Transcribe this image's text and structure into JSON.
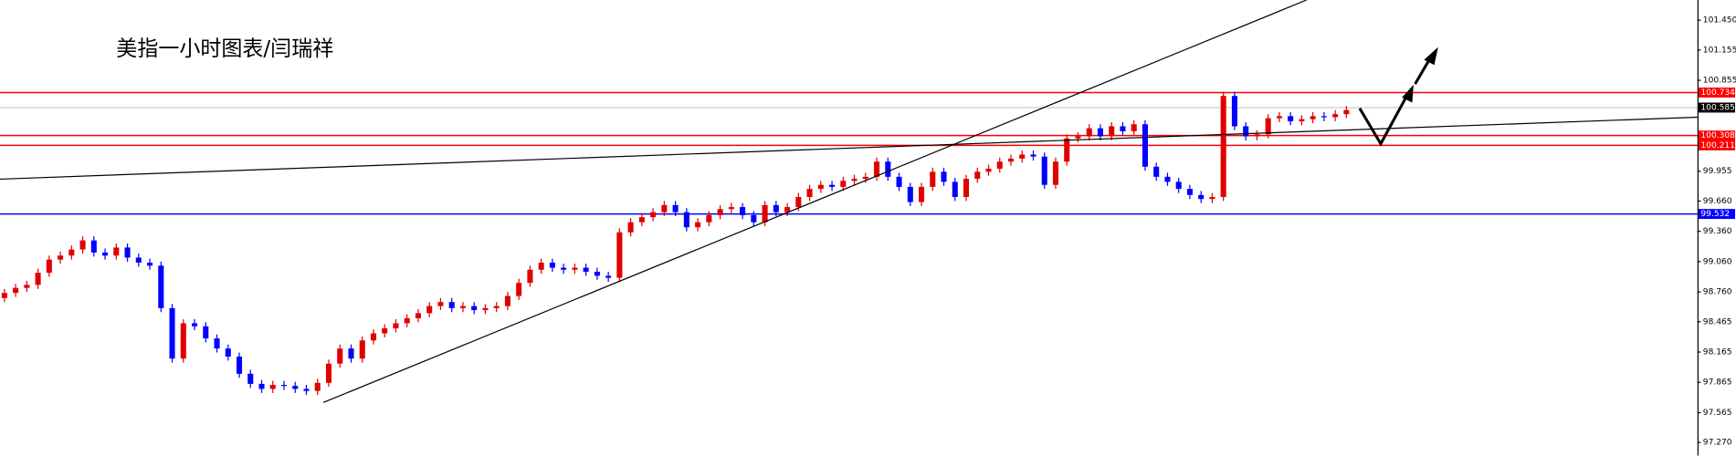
{
  "chart_data": {
    "type": "candlestick",
    "title": "美指一小时图表/闫瑞祥",
    "up_color": "#e00000",
    "down_color": "#0000ff",
    "ylim": [
      97.14,
      101.65
    ],
    "yticks": [
      {
        "value": 101.45,
        "label": "101.450"
      },
      101.155,
      100.855,
      99.955,
      {
        "value": 99.66,
        "label": "99.660"
      },
      {
        "value": 99.36,
        "label": "99.360"
      },
      {
        "value": 99.06,
        "label": "99.060"
      },
      {
        "value": 98.76,
        "label": "98.760"
      },
      98.465,
      98.165,
      97.865,
      97.565,
      {
        "value": 97.27,
        "label": "97.270"
      }
    ],
    "levels": [
      {
        "value": 100.734,
        "color": "#ff0000"
      },
      {
        "value": 100.585,
        "color": "#c0c0c0"
      },
      {
        "value": 100.308,
        "color": "#ff0000"
      },
      {
        "value": 100.211,
        "color": "#ff0000"
      },
      {
        "value": 99.532,
        "color": "#0000ff"
      }
    ],
    "open": [
      98.7,
      98.75,
      98.8,
      98.83,
      98.95,
      99.08,
      99.12,
      99.18,
      99.27,
      99.15,
      99.12,
      99.2,
      99.1,
      99.05,
      99.02,
      98.6,
      98.1,
      98.45,
      98.42,
      98.3,
      98.2,
      98.12,
      97.95,
      97.85,
      97.8,
      97.84,
      97.83,
      97.8,
      97.78,
      97.86,
      98.05,
      98.2,
      98.1,
      98.28,
      98.35,
      98.4,
      98.45,
      98.5,
      98.55,
      98.62,
      98.66,
      98.6,
      98.62,
      98.58,
      98.6,
      98.62,
      98.72,
      98.85,
      98.98,
      99.05,
      99.0,
      98.98,
      99.0,
      98.96,
      98.92,
      98.9,
      99.35,
      99.45,
      99.5,
      99.55,
      99.62,
      99.55,
      99.4,
      99.45,
      99.52,
      99.58,
      99.6,
      99.52,
      99.45,
      99.62,
      99.55,
      99.6,
      99.7,
      99.78,
      99.82,
      99.8,
      99.86,
      99.88,
      99.9,
      100.05,
      99.9,
      99.8,
      99.65,
      99.8,
      99.95,
      99.85,
      99.7,
      99.88,
      99.95,
      99.98,
      100.05,
      100.08,
      100.12,
      100.1,
      99.82,
      100.05,
      100.28,
      100.3,
      100.38,
      100.3,
      100.4,
      100.35,
      100.42,
      100.0,
      99.9,
      99.85,
      99.78,
      99.72,
      99.68,
      99.7,
      100.7,
      100.4,
      100.3,
      100.32,
      100.48,
      100.5,
      100.45,
      100.47,
      100.5,
      100.49,
      100.52
    ],
    "high": [
      98.79,
      98.84,
      98.87,
      98.99,
      99.12,
      99.16,
      99.22,
      99.31,
      99.31,
      99.19,
      99.24,
      99.24,
      99.14,
      99.09,
      99.06,
      98.64,
      98.49,
      98.49,
      98.46,
      98.34,
      98.24,
      98.16,
      97.99,
      97.89,
      97.88,
      97.88,
      97.87,
      97.84,
      97.9,
      98.09,
      98.24,
      98.24,
      98.32,
      98.39,
      98.44,
      98.49,
      98.54,
      98.59,
      98.66,
      98.7,
      98.7,
      98.66,
      98.66,
      98.64,
      98.66,
      98.76,
      98.89,
      99.02,
      99.09,
      99.09,
      99.04,
      99.04,
      99.04,
      99.0,
      98.96,
      99.39,
      99.49,
      99.54,
      99.59,
      99.66,
      99.66,
      99.59,
      99.49,
      99.56,
      99.62,
      99.64,
      99.64,
      99.56,
      99.66,
      99.66,
      99.64,
      99.74,
      99.82,
      99.86,
      99.86,
      99.9,
      99.92,
      99.94,
      100.09,
      100.09,
      99.94,
      99.84,
      99.84,
      99.99,
      99.99,
      99.89,
      99.92,
      99.99,
      100.02,
      100.09,
      100.12,
      100.16,
      100.16,
      100.14,
      100.09,
      100.32,
      100.34,
      100.42,
      100.42,
      100.44,
      100.44,
      100.46,
      100.46,
      100.04,
      99.94,
      99.89,
      99.82,
      99.76,
      99.74,
      100.74,
      100.74,
      100.44,
      100.36,
      100.52,
      100.54,
      100.54,
      100.51,
      100.54,
      100.54,
      100.56,
      100.6
    ],
    "low": [
      98.66,
      98.71,
      98.76,
      98.79,
      98.91,
      99.04,
      99.08,
      99.14,
      99.11,
      99.08,
      99.08,
      99.06,
      99.01,
      98.98,
      98.56,
      98.06,
      98.06,
      98.38,
      98.26,
      98.16,
      98.08,
      97.91,
      97.81,
      97.76,
      97.76,
      97.79,
      97.76,
      97.74,
      97.74,
      97.82,
      98.01,
      98.06,
      98.06,
      98.24,
      98.31,
      98.36,
      98.41,
      98.46,
      98.51,
      98.58,
      98.56,
      98.56,
      98.54,
      98.54,
      98.56,
      98.58,
      98.68,
      98.81,
      98.94,
      98.96,
      98.94,
      98.94,
      98.92,
      98.88,
      98.86,
      98.86,
      99.31,
      99.41,
      99.46,
      99.51,
      99.51,
      99.36,
      99.36,
      99.41,
      99.48,
      99.54,
      99.48,
      99.41,
      99.41,
      99.51,
      99.51,
      99.56,
      99.66,
      99.74,
      99.76,
      99.76,
      99.82,
      99.84,
      99.86,
      99.86,
      99.76,
      99.61,
      99.61,
      99.76,
      99.81,
      99.66,
      99.66,
      99.84,
      99.91,
      99.94,
      100.01,
      100.04,
      100.06,
      99.78,
      99.78,
      100.01,
      100.24,
      100.26,
      100.26,
      100.26,
      100.31,
      100.31,
      99.96,
      99.86,
      99.81,
      99.74,
      99.68,
      99.64,
      99.64,
      99.66,
      100.36,
      100.26,
      100.26,
      100.28,
      100.44,
      100.41,
      100.41,
      100.43,
      100.45,
      100.45,
      100.48
    ],
    "close": [
      98.75,
      98.8,
      98.83,
      98.95,
      99.08,
      99.12,
      99.18,
      99.27,
      99.15,
      99.12,
      99.2,
      99.1,
      99.05,
      99.02,
      98.6,
      98.1,
      98.45,
      98.42,
      98.3,
      98.2,
      98.12,
      97.95,
      97.85,
      97.8,
      97.84,
      97.83,
      97.8,
      97.78,
      97.86,
      98.05,
      98.2,
      98.1,
      98.28,
      98.35,
      98.4,
      98.45,
      98.5,
      98.55,
      98.62,
      98.66,
      98.6,
      98.62,
      98.58,
      98.6,
      98.62,
      98.72,
      98.85,
      98.98,
      99.05,
      99.0,
      98.98,
      99.0,
      98.96,
      98.92,
      98.9,
      99.35,
      99.45,
      99.5,
      99.55,
      99.62,
      99.55,
      99.4,
      99.45,
      99.52,
      99.58,
      99.6,
      99.52,
      99.45,
      99.62,
      99.55,
      99.6,
      99.7,
      99.78,
      99.82,
      99.8,
      99.86,
      99.88,
      99.9,
      100.05,
      99.9,
      99.8,
      99.65,
      99.8,
      99.95,
      99.85,
      99.7,
      99.88,
      99.95,
      99.98,
      100.05,
      100.08,
      100.12,
      100.1,
      99.82,
      100.05,
      100.28,
      100.3,
      100.38,
      100.3,
      100.4,
      100.35,
      100.42,
      100.0,
      99.9,
      99.85,
      99.78,
      99.72,
      99.68,
      99.7,
      100.7,
      100.4,
      100.3,
      100.32,
      100.48,
      100.5,
      100.45,
      100.47,
      100.5,
      100.49,
      100.52,
      100.56
    ]
  }
}
